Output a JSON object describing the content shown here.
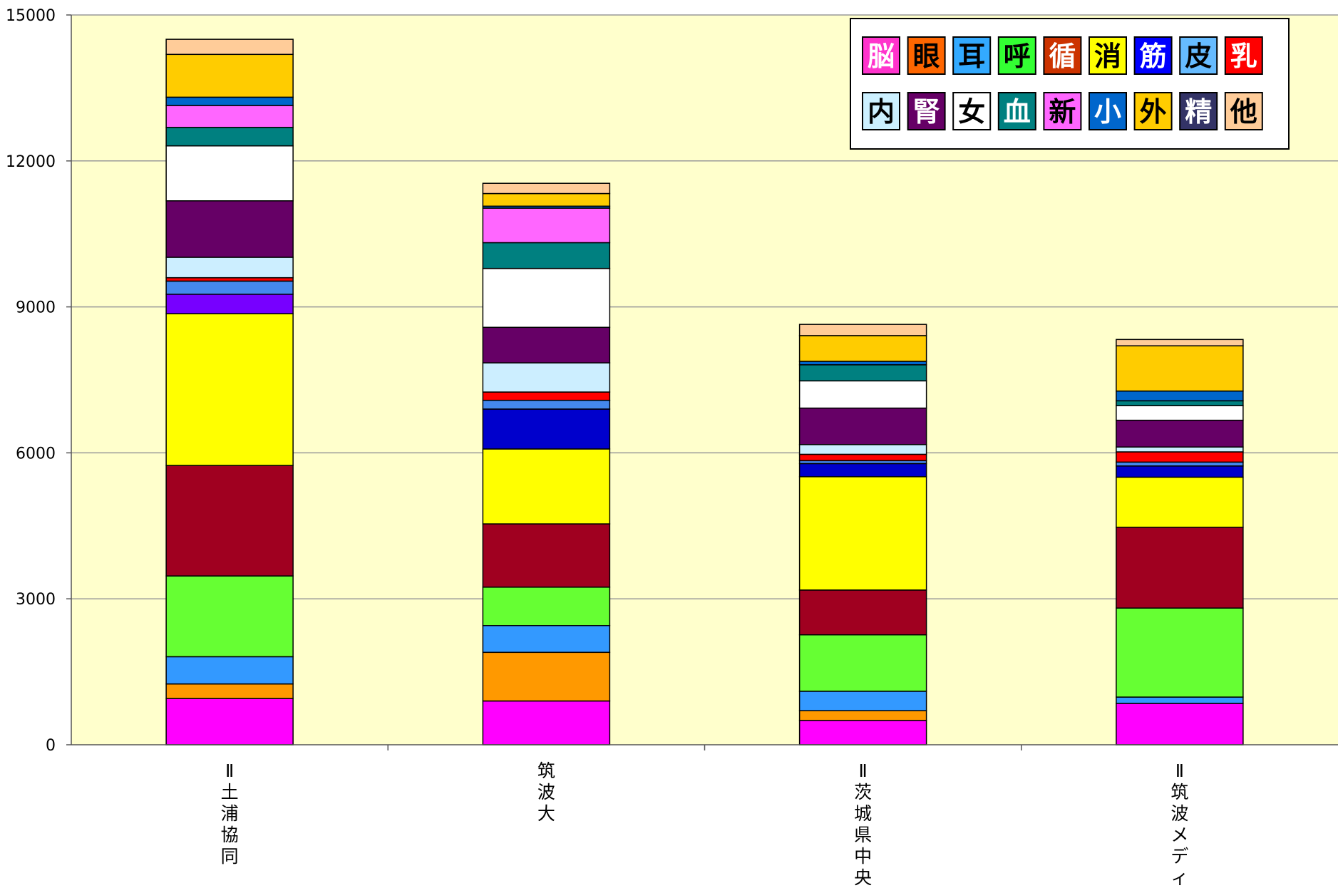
{
  "chart_data": {
    "type": "bar",
    "stacked": true,
    "ylim": [
      0,
      15000
    ],
    "yticks": [
      0,
      3000,
      6000,
      9000,
      12000,
      15000
    ],
    "grid": true,
    "legend_position": "top-right",
    "plot_background": "#ffffcc",
    "categories": [
      [
        "Ⅱ",
        "土",
        "浦",
        "協",
        "同"
      ],
      [
        "筑",
        "波",
        "大"
      ],
      [
        "Ⅱ",
        "茨",
        "城",
        "県",
        "中",
        "央"
      ],
      [
        "Ⅱ",
        "筑",
        "波",
        "メ",
        "デ",
        "ィ"
      ]
    ],
    "series": [
      {
        "color": "#ff00ff",
        "values": [
          950,
          900,
          500,
          850
        ]
      },
      {
        "color": "#ff9900",
        "values": [
          300,
          1000,
          200,
          0
        ]
      },
      {
        "color": "#3399ff",
        "values": [
          560,
          550,
          400,
          130
        ]
      },
      {
        "color": "#66ff33",
        "values": [
          1660,
          790,
          1160,
          1830
        ]
      },
      {
        "color": "#a00020",
        "values": [
          2270,
          1300,
          920,
          1660
        ]
      },
      {
        "color": "#ffff00",
        "values": [
          3120,
          1540,
          2330,
          1030
        ]
      },
      {
        "color": "#7700ff",
        "values": [
          400,
          0,
          0,
          0
        ]
      },
      {
        "color": "#0000cc",
        "values": [
          0,
          820,
          270,
          230
        ]
      },
      {
        "color": "#4488ee",
        "values": [
          270,
          180,
          60,
          80
        ]
      },
      {
        "color": "#ff0000",
        "values": [
          70,
          170,
          130,
          210
        ]
      },
      {
        "color": "#cceeff",
        "values": [
          420,
          600,
          200,
          100
        ]
      },
      {
        "color": "#660066",
        "values": [
          1160,
          730,
          750,
          550
        ]
      },
      {
        "color": "#ffffff",
        "values": [
          1130,
          1210,
          560,
          300
        ]
      },
      {
        "color": "#008080",
        "values": [
          380,
          530,
          330,
          100
        ]
      },
      {
        "color": "#ff66ff",
        "values": [
          450,
          710,
          0,
          0
        ]
      },
      {
        "color": "#0066cc",
        "values": [
          170,
          40,
          70,
          200
        ]
      },
      {
        "color": "#ffcc00",
        "values": [
          880,
          260,
          530,
          930
        ]
      },
      {
        "color": "#ffcc99",
        "values": [
          310,
          210,
          230,
          130
        ]
      }
    ],
    "legend": {
      "rows": [
        [
          {
            "label": "脳",
            "bg": "#ff33cc",
            "fg": "#ffffff"
          },
          {
            "label": "眼",
            "bg": "#ff6600",
            "fg": "#000000"
          },
          {
            "label": "耳",
            "bg": "#33aaff",
            "fg": "#000000"
          },
          {
            "label": "呼",
            "bg": "#33ff33",
            "fg": "#000000"
          },
          {
            "label": "循",
            "bg": "#cc3300",
            "fg": "#ffffff"
          },
          {
            "label": "消",
            "bg": "#ffff00",
            "fg": "#000000"
          },
          {
            "label": "筋",
            "bg": "#0000ff",
            "fg": "#ffffff"
          },
          {
            "label": "皮",
            "bg": "#66bbff",
            "fg": "#000000"
          },
          {
            "label": "乳",
            "bg": "#ff0000",
            "fg": "#ffffff"
          }
        ],
        [
          {
            "label": "内",
            "bg": "#ccf0ff",
            "fg": "#000000"
          },
          {
            "label": "腎",
            "bg": "#660066",
            "fg": "#ffffff"
          },
          {
            "label": "女",
            "bg": "#ffffff",
            "fg": "#000000"
          },
          {
            "label": "血",
            "bg": "#008080",
            "fg": "#ffffff"
          },
          {
            "label": "新",
            "bg": "#ff66ff",
            "fg": "#000000"
          },
          {
            "label": "小",
            "bg": "#0066cc",
            "fg": "#ffffff"
          },
          {
            "label": "外",
            "bg": "#ffcc00",
            "fg": "#000000"
          },
          {
            "label": "精",
            "bg": "#333366",
            "fg": "#ffffff"
          },
          {
            "label": "他",
            "bg": "#ffcc99",
            "fg": "#000000"
          }
        ]
      ]
    }
  }
}
